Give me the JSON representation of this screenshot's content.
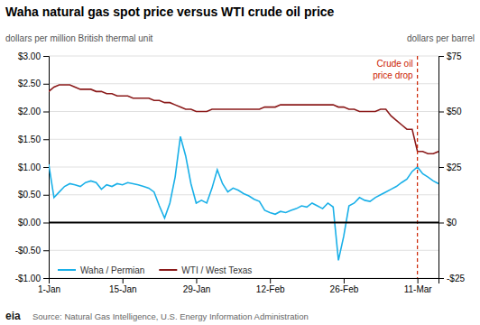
{
  "chart_data": {
    "type": "line",
    "title": "Waha natural gas spot price versus WTI crude oil price",
    "y_label": "dollars per million British thermal unit",
    "y2_label": "dollars per barrel",
    "source": "Source: Natural Gas Intelligence, U.S. Energy Information Administration",
    "logo": "eia",
    "annotations": [
      {
        "text": "Crude oil\nprice drop",
        "x": 70,
        "color": "#cc2200"
      },
      {
        "y": 0,
        "color": "#000000"
      }
    ],
    "x": [
      0,
      1,
      2,
      3,
      4,
      5,
      6,
      7,
      8,
      9,
      10,
      11,
      12,
      13,
      14,
      15,
      16,
      17,
      18,
      19,
      20,
      21,
      22,
      23,
      24,
      25,
      26,
      27,
      28,
      29,
      30,
      31,
      32,
      33,
      34,
      35,
      36,
      37,
      38,
      39,
      40,
      41,
      42,
      43,
      44,
      45,
      46,
      47,
      48,
      49,
      50,
      51,
      52,
      53,
      54,
      55,
      56,
      57,
      58,
      59,
      60,
      61,
      62,
      63,
      64,
      65,
      66,
      67,
      68,
      69,
      70,
      71,
      72,
      73,
      74
    ],
    "series": [
      {
        "name": "Waha / Permian",
        "color": "#1ab0e8",
        "values": [
          1.05,
          0.45,
          0.55,
          0.65,
          0.7,
          0.68,
          0.65,
          0.72,
          0.75,
          0.72,
          0.6,
          0.68,
          0.65,
          0.7,
          0.68,
          0.72,
          0.7,
          0.68,
          0.65,
          0.62,
          0.55,
          0.3,
          0.08,
          0.35,
          0.82,
          1.55,
          1.2,
          0.7,
          0.35,
          0.4,
          0.35,
          0.62,
          0.95,
          0.7,
          0.55,
          0.62,
          0.58,
          0.52,
          0.48,
          0.42,
          0.38,
          0.22,
          0.18,
          0.15,
          0.2,
          0.18,
          0.22,
          0.25,
          0.3,
          0.28,
          0.35,
          0.3,
          0.25,
          0.35,
          0.28,
          -0.68,
          -0.25,
          0.3,
          0.35,
          0.45,
          0.4,
          0.38,
          0.45,
          0.5,
          0.55,
          0.6,
          0.65,
          0.72,
          0.78,
          0.92,
          1.0,
          0.88,
          0.82,
          0.75,
          0.7
        ]
      },
      {
        "name": "WTI / West Texas",
        "color": "#8b1a1a",
        "axis": "y2",
        "values": [
          59,
          61,
          62,
          62,
          62,
          61,
          60,
          60,
          60,
          59,
          59,
          58,
          58,
          57,
          57,
          57,
          56,
          56,
          56,
          56,
          55,
          55,
          54,
          54,
          53,
          52,
          51,
          51,
          50,
          50,
          50,
          51,
          51,
          51,
          51,
          51,
          51,
          51,
          51,
          51,
          51,
          52,
          52,
          52,
          53,
          53,
          53,
          53,
          53,
          53,
          53,
          53,
          53,
          53,
          53,
          52,
          52,
          51,
          51,
          50,
          50,
          50,
          50,
          51,
          51,
          48,
          46,
          44,
          42,
          42,
          32,
          32,
          31,
          31,
          32
        ]
      }
    ],
    "xlim": [
      0,
      74
    ],
    "xticks": [
      {
        "value": 0,
        "label": "1-Jan"
      },
      {
        "value": 14,
        "label": "15-Jan"
      },
      {
        "value": 28,
        "label": "29-Jan"
      },
      {
        "value": 42,
        "label": "12-Feb"
      },
      {
        "value": 56,
        "label": "26-Feb"
      },
      {
        "value": 70,
        "label": "11-Mar"
      }
    ],
    "ylim": [
      -1.0,
      3.0
    ],
    "yticks": [
      {
        "value": -1.0,
        "label": "-$1.00"
      },
      {
        "value": -0.5,
        "label": "-$0.50"
      },
      {
        "value": 0.0,
        "label": "$0.00"
      },
      {
        "value": 0.5,
        "label": "$0.50"
      },
      {
        "value": 1.0,
        "label": "$1.00"
      },
      {
        "value": 1.5,
        "label": "$1.50"
      },
      {
        "value": 2.0,
        "label": "$2.00"
      },
      {
        "value": 2.5,
        "label": "$2.50"
      },
      {
        "value": 3.0,
        "label": "$3.00"
      }
    ],
    "y2lim": [
      -25.0,
      75.0
    ],
    "y2ticks": [
      {
        "value": -25,
        "label": "-$25"
      },
      {
        "value": 0,
        "label": "$0"
      },
      {
        "value": 25,
        "label": "$25"
      },
      {
        "value": 50,
        "label": "$50"
      },
      {
        "value": 75,
        "label": "$75"
      }
    ],
    "grid": true,
    "legend": "lower left"
  }
}
